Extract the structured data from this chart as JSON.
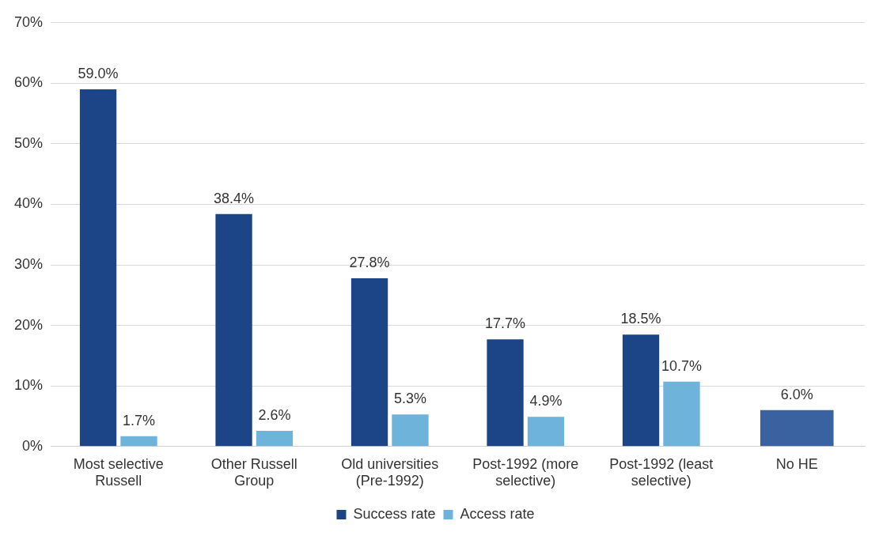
{
  "chart_data": {
    "type": "bar",
    "categories": [
      "Most selective Russell",
      "Other Russell Group",
      "Old universities (Pre-1992)",
      "Post-1992 (more selective)",
      "Post-1992 (least selective)",
      "No HE"
    ],
    "series": [
      {
        "name": "Success rate",
        "color": "#1c4587",
        "values": [
          59.0,
          38.4,
          27.8,
          17.7,
          18.5,
          null
        ],
        "value_labels": [
          "59.0%",
          "38.4%",
          "27.8%",
          "17.7%",
          "18.5%",
          null
        ]
      },
      {
        "name": "Access rate",
        "color": "#6db3da",
        "values": [
          1.7,
          2.6,
          5.3,
          4.9,
          10.7,
          null
        ],
        "value_labels": [
          "1.7%",
          "2.6%",
          "5.3%",
          "4.9%",
          "10.7%",
          null
        ]
      },
      {
        "color": "#3a62a0",
        "values": [
          null,
          null,
          null,
          null,
          null,
          6.0
        ],
        "value_labels": [
          null,
          null,
          null,
          null,
          null,
          "6.0%"
        ]
      }
    ],
    "ylim": [
      0,
      70
    ],
    "yticks": [
      {
        "value": 0,
        "label": "0%"
      },
      {
        "value": 10,
        "label": "10%"
      },
      {
        "value": 20,
        "label": "20%"
      },
      {
        "value": 30,
        "label": "30%"
      },
      {
        "value": 40,
        "label": "40%"
      },
      {
        "value": 50,
        "label": "50%"
      },
      {
        "value": 60,
        "label": "60%"
      },
      {
        "value": 70,
        "label": "70%"
      }
    ],
    "grid": "y",
    "legend": "bottom"
  }
}
